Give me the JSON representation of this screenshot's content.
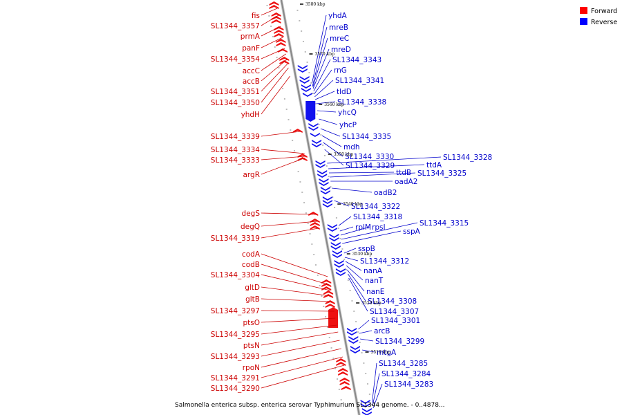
{
  "legend": [
    {
      "label": "Forward",
      "color": "#ff0000"
    },
    {
      "label": "Reverse",
      "color": "#0000ff"
    }
  ],
  "colors": {
    "forward": "#ee1111",
    "reverse": "#1111ee",
    "forward_text": "#cc0000",
    "reverse_text": "#0000cc",
    "backbone": "#888888"
  },
  "caption": "Salmonella enterica subsp. enterica serovar Typhimurium SL1344 genome. - 0..4878...",
  "kbp_ticks": [
    "3580 kbp",
    "3570 kbp",
    "3560 kbp",
    "3550 kbp",
    "3540 kbp",
    "3530 kbp",
    "3520 kbp",
    "3510 kbp"
  ],
  "forward_genes": [
    "fis",
    "SL1344_3357",
    "prmA",
    "panF",
    "SL1344_3354",
    "accC",
    "accB",
    "SL1344_3351",
    "SL1344_3350",
    "yhdH",
    "SL1344_3339",
    "SL1344_3334",
    "SL1344_3333",
    "argR",
    "degS",
    "degQ",
    "SL1344_3319",
    "codA",
    "codB",
    "SL1344_3304",
    "gltD",
    "gltB",
    "SL1344_3297",
    "ptsO",
    "SL1344_3295",
    "ptsN",
    "SL1344_3293",
    "rpoN",
    "SL1344_3291",
    "SL1344_3290"
  ],
  "reverse_genes": [
    "yhdA",
    "mreB",
    "mreC",
    "mreD",
    "SL1344_3343",
    "rnG",
    "SL1344_3341",
    "tldD",
    "SL1344_3338",
    "yhcQ",
    "yhcP",
    "SL1344_3335",
    "mdh",
    "SL1344_3330",
    "SL1344_3329",
    "SL1344_3328",
    "ttdA",
    "ttdB",
    "SL1344_3325",
    "oadA2",
    "oadB2",
    "SL1344_3322",
    "SL1344_3318",
    "rplM",
    "rpsI",
    "SL1344_3315",
    "sspA",
    "sspB",
    "SL1344_3312",
    "nanA",
    "nanT",
    "nanE",
    "SL1344_3308",
    "SL1344_3307",
    "SL1344_3301",
    "arcB",
    "SL1344_3299",
    "mtgA",
    "SL1344_3285",
    "SL1344_3284",
    "SL1344_3283"
  ]
}
